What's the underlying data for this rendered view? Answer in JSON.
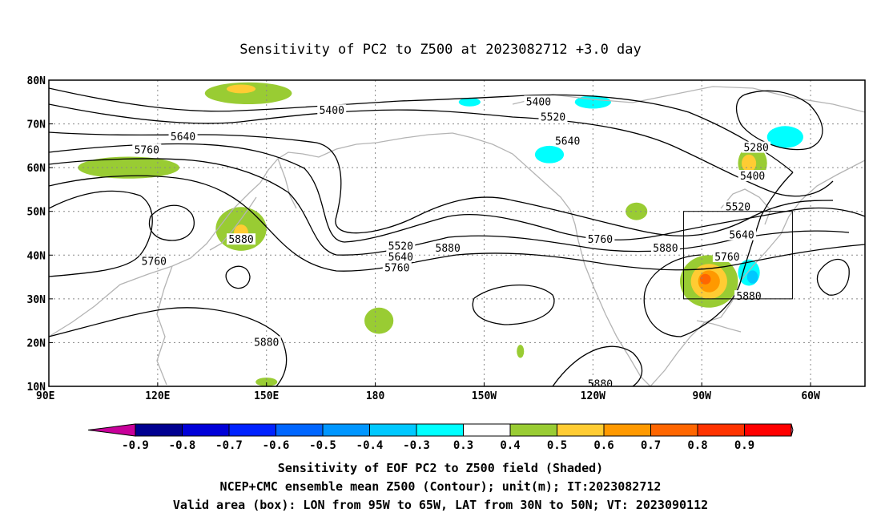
{
  "title": "Sensitivity of PC2 to Z500 at 2023082712 +3.0 day",
  "map": {
    "lon_labels": [
      "90E",
      "120E",
      "150E",
      "180",
      "150W",
      "120W",
      "90W",
      "60W"
    ],
    "lat_labels": [
      "80N",
      "70N",
      "60N",
      "50N",
      "40N",
      "30N",
      "20N",
      "10N"
    ],
    "lon_range_deg_east": [
      90,
      315
    ],
    "lat_range_deg": [
      10,
      80
    ],
    "gridlines": "dotted",
    "coastline_color": "#b4b4b4",
    "contour_color": "#000000"
  },
  "contours": [
    {
      "label": "5400",
      "lon": 168,
      "lat": 73
    },
    {
      "label": "5640",
      "lon": 127,
      "lat": 67
    },
    {
      "label": "5760",
      "lon": 117,
      "lat": 64
    },
    {
      "label": "5880",
      "lon": 143,
      "lat": 43.5
    },
    {
      "label": "5760",
      "lon": 119,
      "lat": 38.5
    },
    {
      "label": "5520",
      "lon": 187,
      "lat": 42
    },
    {
      "label": "5640",
      "lon": 187,
      "lat": 39.5
    },
    {
      "label": "5760",
      "lon": 186,
      "lat": 37
    },
    {
      "label": "5880",
      "lon": 150,
      "lat": 20
    },
    {
      "label": "5400",
      "lon": 225,
      "lat": 75
    },
    {
      "label": "5520",
      "lon": 229,
      "lat": 71.5
    },
    {
      "label": "5640",
      "lon": 233,
      "lat": 66
    },
    {
      "label": "5880",
      "lon": 200,
      "lat": 41.5
    },
    {
      "label": "5760",
      "lon": 242,
      "lat": 43.5
    },
    {
      "label": "5880",
      "lon": 260,
      "lat": 41.5
    },
    {
      "label": "5880",
      "lon": 242,
      "lat": 10.5
    },
    {
      "label": "5280",
      "lon": 285,
      "lat": 64.5
    },
    {
      "label": "5400",
      "lon": 284,
      "lat": 58
    },
    {
      "label": "5520",
      "lon": 280,
      "lat": 51
    },
    {
      "label": "5640",
      "lon": 281,
      "lat": 44.5
    },
    {
      "label": "5760",
      "lon": 277,
      "lat": 39.5
    },
    {
      "label": "5880",
      "lon": 283,
      "lat": 30.5
    }
  ],
  "shaded": [
    {
      "level": 0.3,
      "lon": 145,
      "lat": 77,
      "rx": 12,
      "ry": 2.5
    },
    {
      "level": 0.4,
      "lon": 143,
      "lat": 78,
      "rx": 4,
      "ry": 1
    },
    {
      "level": 0.3,
      "lon": 112,
      "lat": 60,
      "rx": 14,
      "ry": 2.5
    },
    {
      "level": 0.3,
      "lon": 143,
      "lat": 46,
      "rx": 7,
      "ry": 5
    },
    {
      "level": 0.4,
      "lon": 143,
      "lat": 45,
      "rx": 2,
      "ry": 2
    },
    {
      "level": 0.3,
      "lon": 252,
      "lat": 50,
      "rx": 3,
      "ry": 2
    },
    {
      "level": 0.3,
      "lon": 284,
      "lat": 61,
      "rx": 4,
      "ry": 4
    },
    {
      "level": 0.4,
      "lon": 283,
      "lat": 61,
      "rx": 2,
      "ry": 2
    },
    {
      "level": 0.3,
      "lon": 272,
      "lat": 34,
      "rx": 8,
      "ry": 6
    },
    {
      "level": 0.4,
      "lon": 272,
      "lat": 34,
      "rx": 5,
      "ry": 4
    },
    {
      "level": 0.5,
      "lon": 272,
      "lat": 34,
      "rx": 3,
      "ry": 2.5
    },
    {
      "level": 0.6,
      "lon": 271,
      "lat": 34.5,
      "rx": 1.5,
      "ry": 1.2
    },
    {
      "level": 0.3,
      "lon": 181,
      "lat": 25,
      "rx": 4,
      "ry": 3
    },
    {
      "level": 0.3,
      "lon": 150,
      "lat": 11,
      "rx": 3,
      "ry": 1
    },
    {
      "level": 0.3,
      "lon": 220,
      "lat": 18,
      "rx": 1,
      "ry": 1.5
    },
    {
      "level": -0.3,
      "lon": 206,
      "lat": 75,
      "rx": 3,
      "ry": 1
    },
    {
      "level": -0.3,
      "lon": 228,
      "lat": 63,
      "rx": 4,
      "ry": 2
    },
    {
      "level": -0.3,
      "lon": 240,
      "lat": 75,
      "rx": 5,
      "ry": 1.5
    },
    {
      "level": -0.3,
      "lon": 293,
      "lat": 67,
      "rx": 5,
      "ry": 2.5
    },
    {
      "level": -0.3,
      "lon": 283,
      "lat": 36,
      "rx": 3,
      "ry": 3
    },
    {
      "level": -0.4,
      "lon": 284,
      "lat": 35,
      "rx": 1.5,
      "ry": 1.5
    }
  ],
  "valid_box": {
    "lon_min": -95,
    "lon_max": -65,
    "lat_min": 30,
    "lat_max": 50
  },
  "colorbar": {
    "labels": [
      "-0.9",
      "-0.8",
      "-0.7",
      "-0.6",
      "-0.5",
      "-0.4",
      "-0.3",
      "0.3",
      "0.4",
      "0.5",
      "0.6",
      "0.7",
      "0.8",
      "0.9"
    ],
    "colors": [
      "#000090",
      "#0000d8",
      "#0022ff",
      "#0066ff",
      "#0096ff",
      "#00c8ff",
      "#00ffff",
      "#ffffff",
      "#99cc33",
      "#ffcc33",
      "#ff9900",
      "#ff6600",
      "#ff3300",
      "#ff0000"
    ],
    "under_color": "#c8009a",
    "over_color": "#ff99cc"
  },
  "captions": [
    "Sensitivity of EOF PC2 to Z500 field (Shaded)",
    "NCEP+CMC ensemble mean Z500 (Contour); unit(m); IT:2023082712",
    "Valid area (box): LON from 95W to 65W, LAT from 30N to 50N; VT: 2023090112"
  ]
}
